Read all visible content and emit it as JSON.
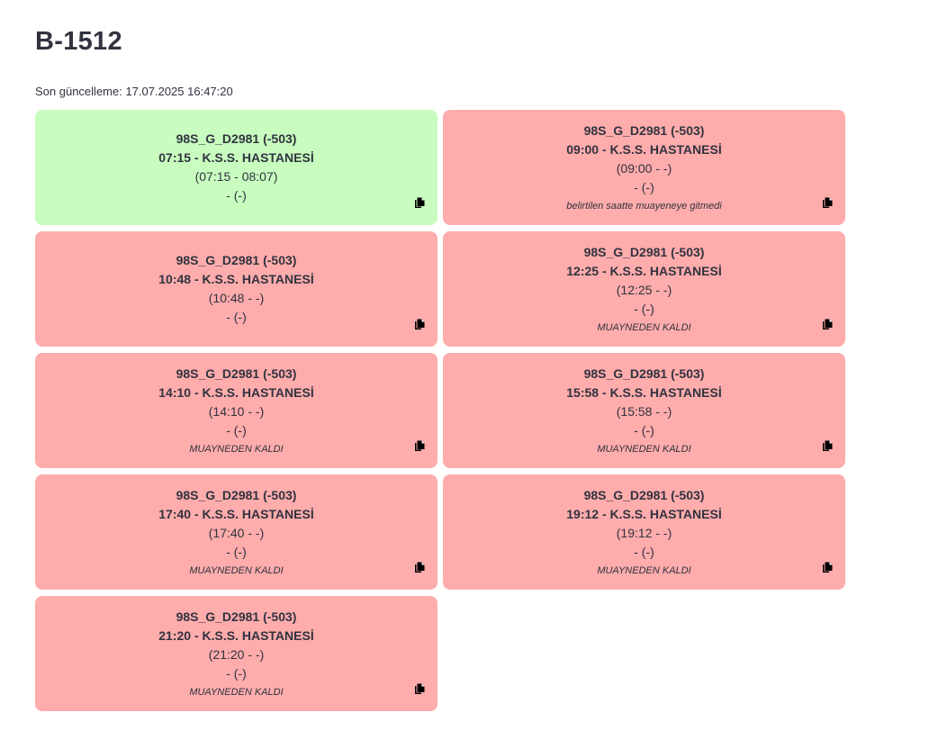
{
  "header": {
    "title": "B-1512",
    "last_updated": "Son güncelleme: 17.07.2025 16:47:20"
  },
  "cards": [
    {
      "status": "green",
      "code": "98S_G_D2981 (-503)",
      "appointment": "07:15 - K.S.S. HASTANESİ",
      "window": "(07:15 - 08:07)",
      "extra": "- (-)",
      "note": ""
    },
    {
      "status": "red",
      "code": "98S_G_D2981 (-503)",
      "appointment": "09:00 - K.S.S. HASTANESİ",
      "window": "(09:00 - -)",
      "extra": "- (-)",
      "note": "belirtilen saatte muayeneye gitmedi"
    },
    {
      "status": "red",
      "code": "98S_G_D2981 (-503)",
      "appointment": "10:48 - K.S.S. HASTANESİ",
      "window": "(10:48 - -)",
      "extra": "- (-)",
      "note": ""
    },
    {
      "status": "red",
      "code": "98S_G_D2981 (-503)",
      "appointment": "12:25 - K.S.S. HASTANESİ",
      "window": "(12:25 - -)",
      "extra": "- (-)",
      "note": "MUAYNEDEN KALDI"
    },
    {
      "status": "red",
      "code": "98S_G_D2981 (-503)",
      "appointment": "14:10 - K.S.S. HASTANESİ",
      "window": "(14:10 - -)",
      "extra": "- (-)",
      "note": "MUAYNEDEN KALDI"
    },
    {
      "status": "red",
      "code": "98S_G_D2981 (-503)",
      "appointment": "15:58 - K.S.S. HASTANESİ",
      "window": "(15:58 - -)",
      "extra": "- (-)",
      "note": "MUAYNEDEN KALDI"
    },
    {
      "status": "red",
      "code": "98S_G_D2981 (-503)",
      "appointment": "17:40 - K.S.S. HASTANESİ",
      "window": "(17:40 - -)",
      "extra": "- (-)",
      "note": "MUAYNEDEN KALDI"
    },
    {
      "status": "red",
      "code": "98S_G_D2981 (-503)",
      "appointment": "19:12 - K.S.S. HASTANESİ",
      "window": "(19:12 - -)",
      "extra": "- (-)",
      "note": "MUAYNEDEN KALDI"
    },
    {
      "status": "red",
      "code": "98S_G_D2981 (-503)",
      "appointment": "21:20 - K.S.S. HASTANESİ",
      "window": "(21:20 - -)",
      "extra": "- (-)",
      "note": "MUAYNEDEN KALDI"
    }
  ],
  "colors": {
    "green_card": "#c8fdbf",
    "red_card": "#feacac",
    "text": "#31333f"
  },
  "icons": {
    "copy": "copy-icon"
  }
}
